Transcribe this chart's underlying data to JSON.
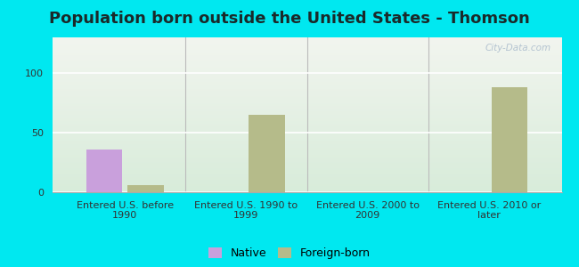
{
  "title": "Population born outside the United States - Thomson",
  "categories": [
    "Entered U.S. before\n1990",
    "Entered U.S. 1990 to\n1999",
    "Entered U.S. 2000 to\n2009",
    "Entered U.S. 2010 or\nlater"
  ],
  "native_values": [
    36,
    0,
    0,
    0
  ],
  "foreign_values": [
    6,
    65,
    0,
    88
  ],
  "native_color": "#c9a0dc",
  "foreign_color": "#b5bb8a",
  "bar_width": 0.3,
  "ylim": [
    0,
    130
  ],
  "yticks": [
    0,
    50,
    100
  ],
  "outer_bg": "#00e8f0",
  "plot_bg_top": "#dce8d8",
  "plot_bg_bottom": "#f0f5ec",
  "watermark": "City-Data.com",
  "title_fontsize": 13,
  "tick_fontsize": 8,
  "legend_fontsize": 9,
  "title_color": "#1a2a2a",
  "tick_color": "#333333"
}
